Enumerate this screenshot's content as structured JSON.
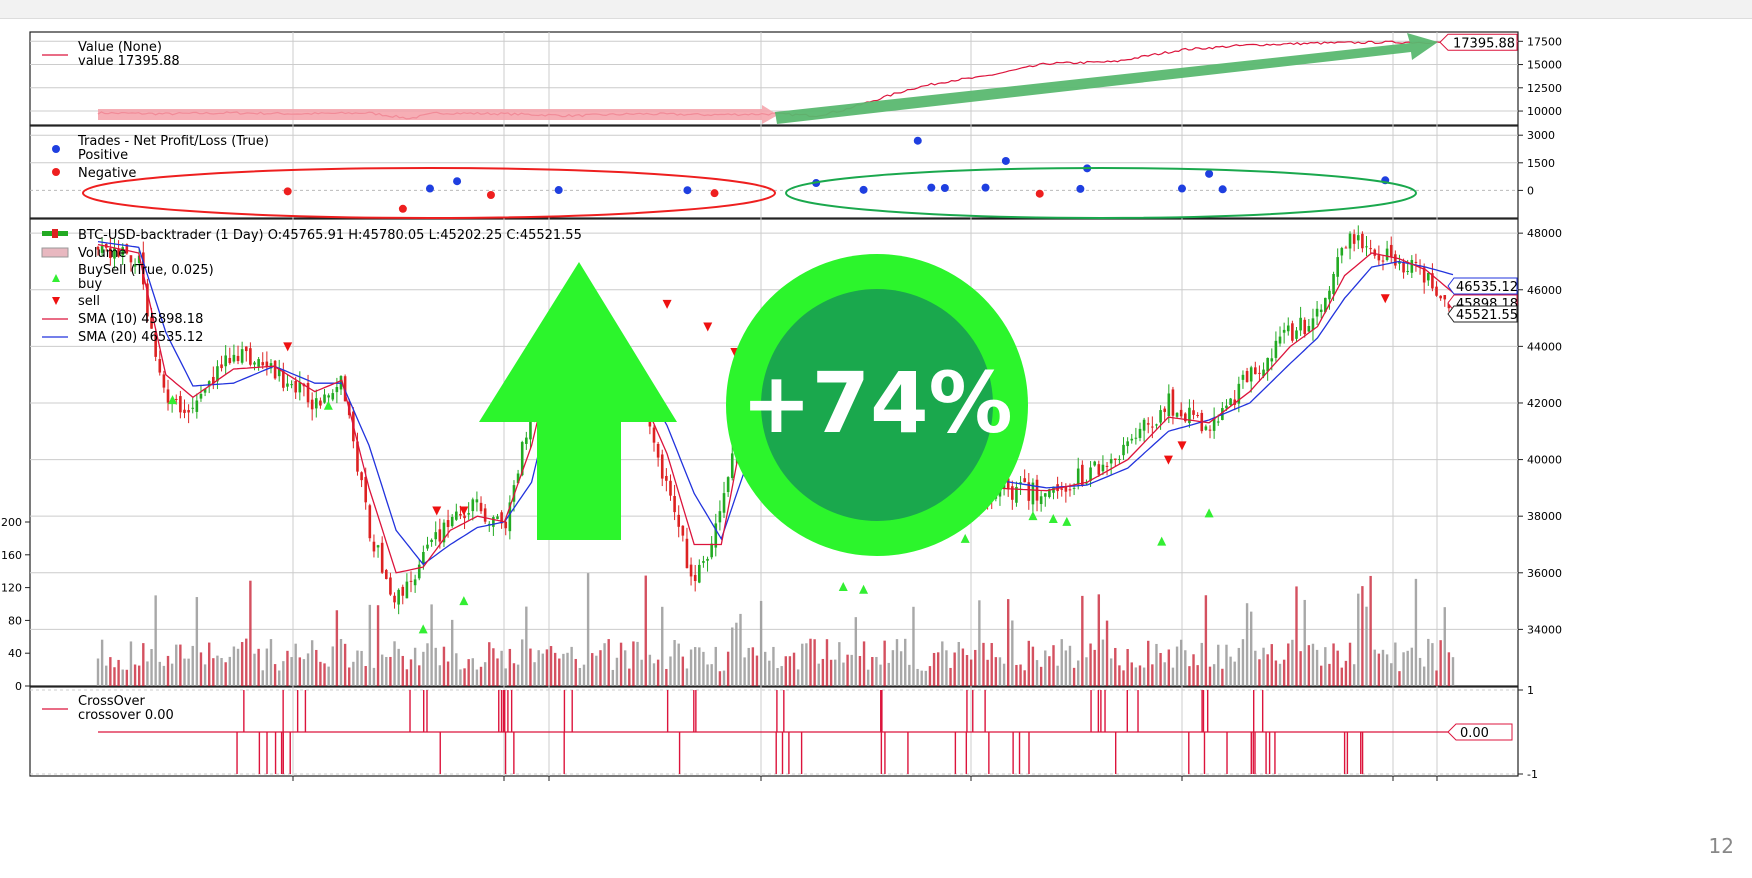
{
  "page_number": "12",
  "colors": {
    "value_line": "#dc143c",
    "positive": "#1f3fe0",
    "negative": "#ee1f1f",
    "sma10": "#dc143c",
    "sma20": "#2233dd",
    "candle_up": "#22aa22",
    "candle_down": "#dd2222",
    "volume_up": "#999999",
    "volume_down": "#cc3344",
    "buy_marker": "#33ee33",
    "sell_marker": "#ee1111",
    "grid": "#cccccc",
    "overlay_green": "#2cf52c",
    "overlay_green_dark": "#1aa84d",
    "overlay_arrow_green": "#5ab870",
    "overlay_arrow_red": "#f5a0a8"
  },
  "overlay": {
    "badge_text": "+74%"
  },
  "chart_data": [
    {
      "type": "line",
      "legend": [
        "Value (None)",
        "value 17395.88"
      ],
      "last_value_label": "17395.88",
      "y_ticks": [
        "17500",
        "15000",
        "12500",
        "10000"
      ],
      "ylim": [
        8500,
        18500
      ],
      "x": [
        0,
        0.05,
        0.1,
        0.15,
        0.2,
        0.23,
        0.25,
        0.3,
        0.35,
        0.4,
        0.45,
        0.5,
        0.53,
        0.55,
        0.6,
        0.63,
        0.65,
        0.7,
        0.75,
        0.8,
        0.85,
        0.9,
        0.95,
        1.0
      ],
      "values": [
        9800,
        9700,
        9800,
        9700,
        9800,
        9200,
        9800,
        9700,
        9500,
        9700,
        9600,
        9700,
        9500,
        10100,
        12400,
        13300,
        13600,
        15100,
        15300,
        16600,
        17100,
        17300,
        17400,
        17395.88
      ]
    },
    {
      "type": "scatter",
      "legend_title": "Trades - Net Profit/Loss (True)",
      "series": [
        {
          "name": "Positive",
          "x": [
            0.245,
            0.265,
            0.34,
            0.435,
            0.53,
            0.565,
            0.605,
            0.615,
            0.625,
            0.655,
            0.67,
            0.725,
            0.73,
            0.8,
            0.82,
            0.83,
            0.95
          ],
          "y": [
            100,
            500,
            20,
            10,
            400,
            30,
            2700,
            150,
            130,
            150,
            1600,
            80,
            1200,
            100,
            900,
            60,
            550
          ]
        },
        {
          "name": "Negative",
          "x": [
            0.14,
            0.225,
            0.29,
            0.455,
            0.695
          ],
          "y": [
            -50,
            -1000,
            -250,
            -150,
            -180
          ]
        }
      ],
      "y_ticks": [
        "3000",
        "1500",
        "0"
      ],
      "ylim": [
        -1500,
        3500
      ]
    },
    {
      "type": "line",
      "title": "BTC-USD-backtrader (1 Day) O:45765.91 H:45780.05 L:45202.25 C:45521.55",
      "legend": [
        "BTC-USD-backtrader (1 Day) O:45765.91 H:45780.05 L:45202.25 C:45521.55",
        "Volume",
        "BuySell (True, 0.025)",
        "buy",
        "sell",
        "SMA (10) 45898.18",
        "SMA (20) 46535.12"
      ],
      "y_ticks": [
        "48000",
        "46000",
        "44000",
        "42000",
        "40000",
        "38000",
        "36000",
        "34000"
      ],
      "ylim": [
        32000,
        48500
      ],
      "volume_ticks": [
        "200",
        "160",
        "120",
        "80",
        "40",
        "0"
      ],
      "volume_lim": [
        0,
        200
      ],
      "last_labels": [
        "46535.12",
        "45898.18",
        "45521.55"
      ],
      "x": [
        0,
        0.03,
        0.05,
        0.07,
        0.1,
        0.13,
        0.16,
        0.18,
        0.2,
        0.22,
        0.24,
        0.26,
        0.28,
        0.3,
        0.32,
        0.34,
        0.36,
        0.38,
        0.4,
        0.42,
        0.44,
        0.46,
        0.48,
        0.5,
        0.53,
        0.56,
        0.6,
        0.63,
        0.66,
        0.7,
        0.73,
        0.76,
        0.79,
        0.82,
        0.85,
        0.88,
        0.9,
        0.92,
        0.94,
        0.96,
        0.98,
        1.0
      ],
      "close": [
        47500,
        47000,
        42000,
        41800,
        43900,
        43100,
        42000,
        43000,
        37500,
        35000,
        36500,
        38000,
        38300,
        37500,
        42000,
        45500,
        44500,
        42800,
        42000,
        39000,
        35500,
        38000,
        44000,
        44000,
        41500,
        39000,
        42200,
        38500,
        39000,
        38800,
        39500,
        40500,
        42000,
        41000,
        43000,
        44500,
        45000,
        47800,
        47500,
        47000,
        46500,
        45521.55
      ],
      "sma10": [
        47600,
        47300,
        43000,
        42200,
        43200,
        43300,
        42400,
        42800,
        39000,
        36000,
        36200,
        37500,
        38000,
        37800,
        40500,
        44500,
        44800,
        43500,
        42400,
        40200,
        37000,
        37000,
        42000,
        43700,
        42500,
        39800,
        41000,
        39500,
        39000,
        38900,
        39200,
        40000,
        41500,
        41300,
        42400,
        44000,
        44700,
        46500,
        47300,
        47100,
        46700,
        45898.18
      ],
      "sma20": [
        47700,
        47500,
        44500,
        42600,
        42700,
        43300,
        42700,
        42700,
        40500,
        37500,
        36300,
        37000,
        37600,
        37800,
        39200,
        43200,
        44600,
        44100,
        42900,
        41200,
        38800,
        37200,
        40000,
        43000,
        43000,
        40600,
        40500,
        40200,
        39300,
        39000,
        39100,
        39700,
        41000,
        41400,
        42000,
        43400,
        44300,
        45700,
        46800,
        47000,
        46800,
        46535.12
      ],
      "buy_x": [
        0.055,
        0.17,
        0.24,
        0.27,
        0.33,
        0.36,
        0.55,
        0.565,
        0.64,
        0.69,
        0.705,
        0.715,
        0.785,
        0.82
      ],
      "buy_y": [
        42100,
        41900,
        34000,
        35000,
        37800,
        37800,
        35500,
        35400,
        37200,
        38000,
        37900,
        37800,
        37100,
        38100
      ],
      "sell_x": [
        0.14,
        0.25,
        0.27,
        0.42,
        0.45,
        0.47,
        0.65,
        0.67,
        0.79,
        0.8,
        0.95
      ],
      "sell_y": [
        44000,
        38200,
        38200,
        45500,
        44700,
        43800,
        43800,
        40700,
        40000,
        40500,
        45700
      ]
    },
    {
      "type": "line",
      "legend": [
        "CrossOver",
        "crossover 0.00"
      ],
      "last_value_label": "0.00",
      "y_ticks": [
        "1",
        "-1"
      ],
      "ylim": [
        -1,
        1
      ]
    }
  ]
}
